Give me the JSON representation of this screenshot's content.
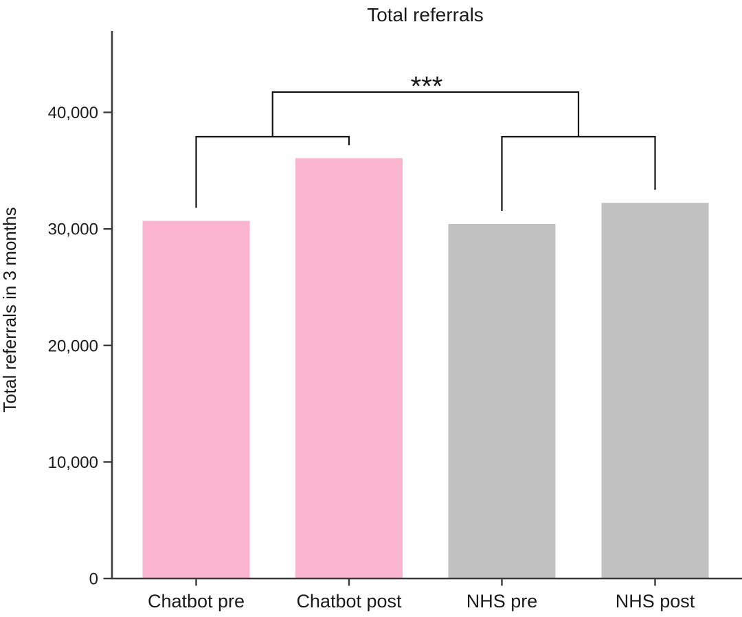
{
  "chart_data": {
    "type": "bar",
    "title": "Total referrals",
    "ylabel": "Total referrals in 3 months",
    "xlabel": "",
    "categories": [
      "Chatbot pre",
      "Chatbot post",
      "NHS pre",
      "NHS post"
    ],
    "values": [
      30690,
      36070,
      30425,
      32240
    ],
    "bar_colors": [
      "#fbb5ce",
      "#fbb5ce",
      "#c1c1c1",
      "#c1c1c1"
    ],
    "ylim": [
      0,
      47000
    ],
    "yticks": [
      0,
      10000,
      20000,
      30000,
      40000
    ],
    "ytick_labels": [
      "0",
      "10,000",
      "20,000",
      "30,000",
      "40,000"
    ],
    "grid": false,
    "legend": "none",
    "significance": {
      "label": "***",
      "groups": [
        [
          "Chatbot pre",
          "Chatbot post"
        ],
        [
          "NHS pre",
          "NHS post"
        ]
      ]
    },
    "text_color": "#1a1a1a",
    "axis_color": "#3a3a3a",
    "bracket_color": "#121212"
  }
}
